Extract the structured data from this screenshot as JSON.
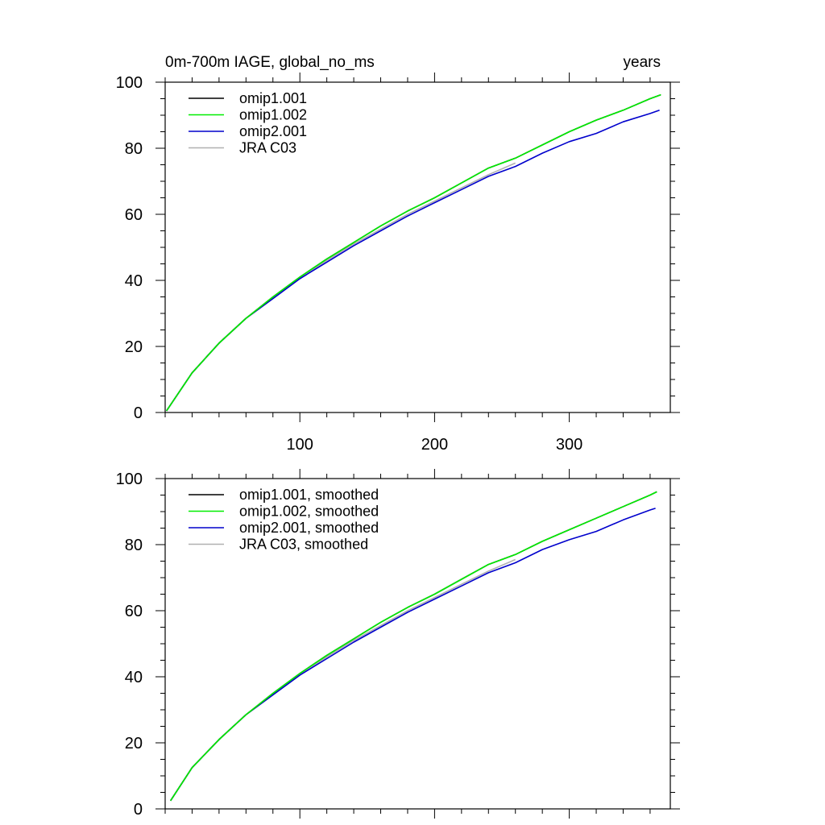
{
  "chart_data": [
    {
      "type": "line",
      "title_left": "0m-700m IAGE, global_no_ms",
      "title_right": "years",
      "xlim": [
        0,
        375
      ],
      "ylim": [
        0,
        100
      ],
      "xticks": [
        100,
        200,
        300
      ],
      "yticks": [
        0,
        20,
        40,
        60,
        80,
        100
      ],
      "legend_position": "top-left",
      "series": [
        {
          "name": "omip1.001",
          "color": "#000000",
          "x": [
            1,
            20,
            40,
            60,
            80,
            100,
            120,
            140,
            160,
            180,
            200,
            220,
            240,
            260,
            280,
            300,
            320,
            340,
            360,
            368
          ],
          "y": [
            0.5,
            12,
            21,
            28.5,
            35,
            41,
            46.5,
            51.5,
            56.5,
            61,
            65,
            69.5,
            74,
            77,
            81,
            85,
            88.5,
            91.5,
            95,
            96.2
          ]
        },
        {
          "name": "omip1.002",
          "color": "#00ee00",
          "x": [
            1,
            20,
            40,
            60,
            80,
            100,
            120,
            140,
            160,
            180,
            200,
            220,
            240,
            260,
            280,
            300,
            320,
            340,
            360,
            368
          ],
          "y": [
            0.5,
            12,
            21,
            28.5,
            35,
            41,
            46.5,
            51.5,
            56.5,
            61,
            65,
            69.5,
            74,
            77,
            81,
            85,
            88.5,
            91.5,
            95,
            96.2
          ]
        },
        {
          "name": "omip2.001",
          "color": "#0000cc",
          "x": [
            1,
            20,
            40,
            60,
            80,
            100,
            120,
            140,
            160,
            180,
            200,
            220,
            240,
            260,
            280,
            300,
            320,
            340,
            360,
            367
          ],
          "y": [
            0.5,
            12,
            21,
            28.5,
            34.5,
            40.5,
            45.5,
            50.5,
            55,
            59.5,
            63.5,
            67.5,
            71.5,
            74.5,
            78.5,
            82,
            84.5,
            88,
            90.5,
            91.5
          ]
        },
        {
          "name": "JRA C03",
          "color": "#b0b0b0",
          "x": [
            1,
            20,
            40,
            60,
            80,
            100,
            120,
            140,
            160,
            180,
            200,
            220,
            240,
            260
          ],
          "y": [
            0.5,
            12,
            21,
            28.5,
            34.5,
            40.5,
            46,
            51,
            55.5,
            60,
            64,
            68,
            72,
            75.5
          ]
        }
      ]
    },
    {
      "type": "line",
      "title_left": "",
      "title_right": "",
      "xlim": [
        0,
        375
      ],
      "ylim": [
        0,
        100
      ],
      "xticks": [
        100,
        200,
        300
      ],
      "yticks": [
        0,
        20,
        40,
        60,
        80,
        100
      ],
      "legend_position": "top-left",
      "series": [
        {
          "name": "omip1.001, smoothed",
          "color": "#000000",
          "x": [
            4,
            20,
            40,
            60,
            80,
            100,
            120,
            140,
            160,
            180,
            200,
            220,
            240,
            260,
            280,
            300,
            320,
            340,
            360,
            365
          ],
          "y": [
            2.5,
            12.5,
            21,
            28.5,
            35,
            41,
            46.5,
            51.5,
            56.5,
            61,
            65,
            69.5,
            74,
            77,
            81,
            84.5,
            88,
            91.5,
            95,
            96
          ]
        },
        {
          "name": "omip1.002, smoothed",
          "color": "#00ee00",
          "x": [
            4,
            20,
            40,
            60,
            80,
            100,
            120,
            140,
            160,
            180,
            200,
            220,
            240,
            260,
            280,
            300,
            320,
            340,
            360,
            365
          ],
          "y": [
            2.5,
            12.5,
            21,
            28.5,
            35,
            41,
            46.5,
            51.5,
            56.5,
            61,
            65,
            69.5,
            74,
            77,
            81,
            84.5,
            88,
            91.5,
            95,
            96
          ]
        },
        {
          "name": "omip2.001, smoothed",
          "color": "#0000cc",
          "x": [
            4,
            20,
            40,
            60,
            80,
            100,
            120,
            140,
            160,
            180,
            200,
            220,
            240,
            260,
            280,
            300,
            320,
            340,
            360,
            364
          ],
          "y": [
            2.5,
            12.5,
            21,
            28.5,
            34.5,
            40.5,
            45.5,
            50.5,
            55,
            59.5,
            63.5,
            67.5,
            71.5,
            74.5,
            78.5,
            81.5,
            84,
            87.5,
            90.5,
            91
          ]
        },
        {
          "name": "JRA C03, smoothed",
          "color": "#b0b0b0",
          "x": [
            4,
            20,
            40,
            60,
            80,
            100,
            120,
            140,
            160,
            180,
            200,
            220,
            240,
            260
          ],
          "y": [
            2.5,
            12.5,
            21,
            28.5,
            34.5,
            40.5,
            46,
            51,
            55.5,
            60,
            64,
            68,
            72,
            75.5
          ]
        }
      ]
    }
  ]
}
